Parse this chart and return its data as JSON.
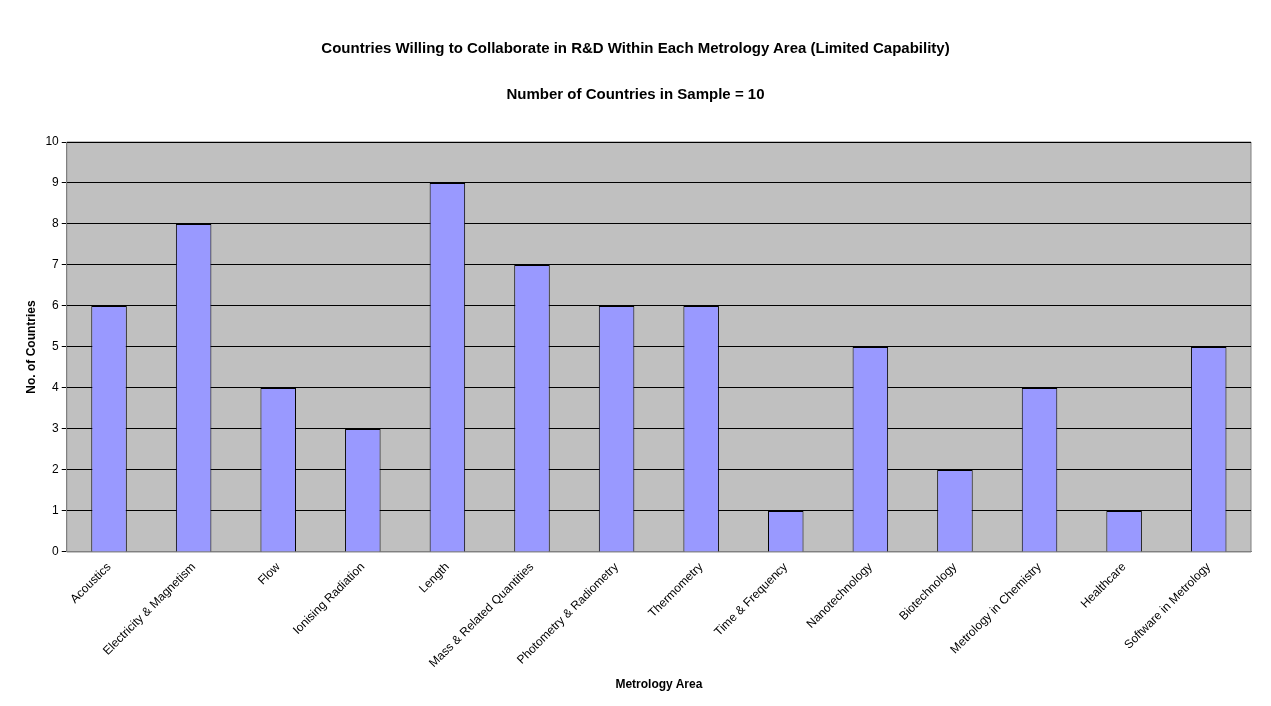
{
  "chart_data": {
    "type": "bar",
    "title": "Countries Willing to Collaborate in R&D Within Each Metrology Area (Limited Capability)",
    "subtitle": "Number of Countries in Sample = 10",
    "xlabel": "Metrology Area",
    "ylabel": "No. of Countries",
    "categories": [
      "Acoustics",
      "Electricity & Magnetism",
      "Flow",
      "Ionising Radiation",
      "Length",
      "Mass & Related Quantities",
      "Photometry & Radiometry",
      "Thermometry",
      "Time & Frequency",
      "Nanotechnology",
      "Biotechnology",
      "Metrology in Chemistry",
      "Healthcare",
      "Software in Metrology"
    ],
    "values": [
      6,
      8,
      4,
      3,
      9,
      7,
      6,
      6,
      1,
      5,
      2,
      4,
      1,
      5
    ],
    "color": "#9999ff",
    "ylim": [
      0,
      10
    ],
    "yticks": [
      0,
      1,
      2,
      3,
      4,
      5,
      6,
      7,
      8,
      9,
      10
    ],
    "grid": "y",
    "legend": false
  }
}
